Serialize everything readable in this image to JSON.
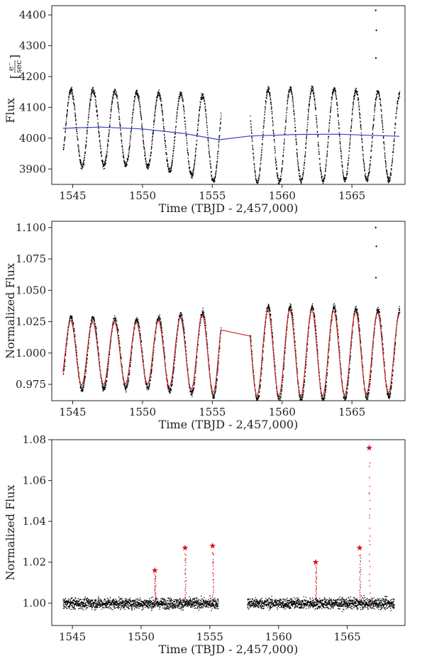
{
  "chart_data": [
    {
      "type": "scatter",
      "xlabel": "Time (TBJD - 2,457,000)",
      "ylabel": "Flux",
      "ylabel_unit": {
        "numerator": "e⁻",
        "denominator": "sec"
      },
      "xlim": [
        1543.5,
        1568.8
      ],
      "ylim": [
        3850,
        4430
      ],
      "xticks": [
        1545,
        1550,
        1555,
        1560,
        1565
      ],
      "yticks": [
        3900,
        4000,
        4100,
        4200,
        4300,
        4400
      ],
      "series": [
        {
          "kind": "points",
          "color": "#000000",
          "sinusoid": {
            "segments": [
              [
                1544.3,
                1555.6
              ],
              [
                1557.7,
                1568.4
              ]
            ],
            "period": 1.57,
            "phase_peak": 1544.85,
            "baseline": [
              [
                1544.3,
                4032
              ],
              [
                1547.0,
                4036
              ],
              [
                1550.0,
                4030
              ],
              [
                1553.0,
                4015
              ],
              [
                1555.5,
                3995
              ],
              [
                1557.7,
                4007
              ],
              [
                1561.0,
                4012
              ],
              [
                1564.0,
                4013
              ],
              [
                1568.4,
                4006
              ]
            ],
            "amplitude": [
              [
                1544.3,
                125
              ],
              [
                1550.0,
                118
              ],
              [
                1555.5,
                140
              ],
              [
                1557.7,
                150
              ],
              [
                1563.0,
                150
              ],
              [
                1568.4,
                140
              ]
            ],
            "noise": 10
          },
          "spikes": [
            {
              "x": 1566.7,
              "y": 4415
            },
            {
              "x": 1566.75,
              "y": 4350
            },
            {
              "x": 1566.72,
              "y": 4260
            }
          ]
        },
        {
          "kind": "line",
          "color": "#3340c4",
          "x": [
            1544.3,
            1547.0,
            1550.0,
            1553.0,
            1555.5,
            1557.7,
            1561.0,
            1564.0,
            1568.4
          ],
          "y": [
            4032,
            4036,
            4030,
            4015,
            3995,
            4007,
            4012,
            4013,
            4006
          ]
        }
      ]
    },
    {
      "type": "scatter",
      "xlabel": "Time (TBJD - 2,457,000)",
      "ylabel": "Normalized Flux",
      "xlim": [
        1543.5,
        1568.8
      ],
      "ylim": [
        0.962,
        1.105
      ],
      "xticks": [
        1545,
        1550,
        1555,
        1560,
        1565
      ],
      "yticks": [
        0.975,
        1.0,
        1.025,
        1.05,
        1.075,
        1.1
      ],
      "ytick_labels": [
        "0.975",
        "1.000",
        "1.025",
        "1.050",
        "1.075",
        "1.100"
      ],
      "series": [
        {
          "kind": "points",
          "color": "#000000",
          "sinusoid": {
            "segments": [
              [
                1544.3,
                1555.6
              ],
              [
                1557.7,
                1568.4
              ]
            ],
            "period": 1.57,
            "phase_peak": 1544.85,
            "baseline": [
              [
                1544.3,
                1.0
              ],
              [
                1568.4,
                1.0
              ]
            ],
            "amplitude": [
              [
                1544.3,
                0.029
              ],
              [
                1550.0,
                0.027
              ],
              [
                1555.5,
                0.035
              ],
              [
                1557.7,
                0.037
              ],
              [
                1563.0,
                0.037
              ],
              [
                1568.4,
                0.034
              ]
            ],
            "noise": 0.0025
          },
          "spikes": [
            {
              "x": 1566.7,
              "y": 1.1
            },
            {
              "x": 1566.75,
              "y": 1.085
            },
            {
              "x": 1566.72,
              "y": 1.06
            }
          ]
        },
        {
          "kind": "model",
          "color": "#cc2222",
          "sinusoid": {
            "segments": [
              [
                1544.3,
                1555.6
              ],
              [
                1557.7,
                1568.4
              ]
            ],
            "period": 1.57,
            "phase_peak": 1544.85,
            "baseline": [
              [
                1544.3,
                1.0
              ],
              [
                1568.4,
                1.0
              ]
            ],
            "amplitude": [
              [
                1544.3,
                0.026
              ],
              [
                1550.0,
                0.024
              ],
              [
                1555.5,
                0.032
              ],
              [
                1557.7,
                0.034
              ],
              [
                1563.0,
                0.034
              ],
              [
                1568.4,
                0.031
              ]
            ]
          }
        }
      ]
    },
    {
      "type": "scatter",
      "xlabel": "Time (TBJD - 2,457,000)",
      "ylabel": "Normalized Flux",
      "xlim": [
        1543.5,
        1569.2
      ],
      "ylim": [
        0.989,
        1.08
      ],
      "xticks": [
        1545,
        1550,
        1555,
        1560,
        1565
      ],
      "yticks": [
        1.0,
        1.02,
        1.04,
        1.06,
        1.08
      ],
      "ytick_labels": [
        "1.00",
        "1.02",
        "1.04",
        "1.06",
        "1.08"
      ],
      "series": [
        {
          "kind": "points",
          "color": "#000000",
          "noise_band": {
            "segments": [
              [
                1544.3,
                1555.6
              ],
              [
                1557.7,
                1568.4
              ]
            ],
            "center": 1.0,
            "noise": 0.0025
          }
        },
        {
          "kind": "flares",
          "color": "#dd1122",
          "marker": "star",
          "peaks": [
            {
              "x": 1551.0,
              "y": 1.016
            },
            {
              "x": 1553.2,
              "y": 1.027
            },
            {
              "x": 1555.2,
              "y": 1.028
            },
            {
              "x": 1562.7,
              "y": 1.02
            },
            {
              "x": 1565.9,
              "y": 1.027
            },
            {
              "x": 1566.6,
              "y": 1.076
            }
          ]
        }
      ]
    }
  ]
}
